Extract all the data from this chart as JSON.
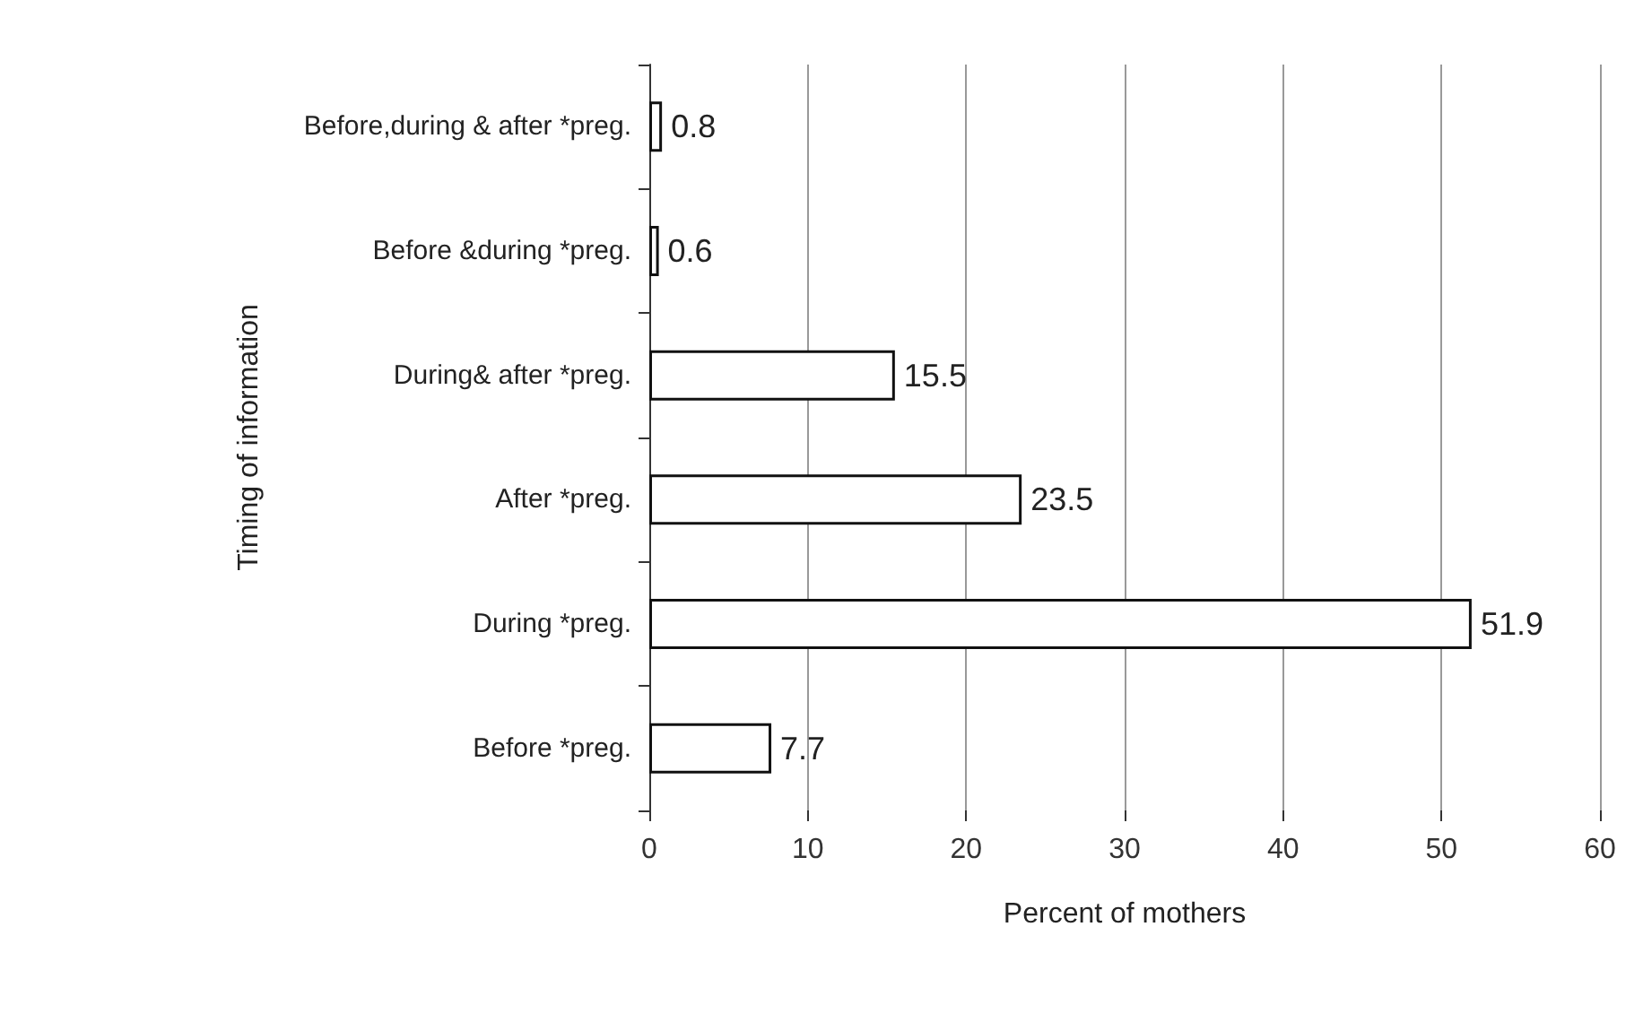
{
  "chart_data": {
    "type": "bar",
    "orientation": "horizontal",
    "ylabel": "Timing of information",
    "xlabel": "Percent of mothers",
    "categories": [
      "Before,during & after *preg.",
      "Before &during *preg.",
      "During& after *preg.",
      "After *preg.",
      "During *preg.",
      "Before *preg."
    ],
    "values": [
      0.8,
      0.6,
      15.5,
      23.5,
      51.9,
      7.7
    ],
    "color": "#ffffff",
    "xlim": [
      0,
      60
    ],
    "xticks": [
      0,
      10,
      20,
      30,
      40,
      50,
      60
    ],
    "grid": "x",
    "data_labels": true
  }
}
